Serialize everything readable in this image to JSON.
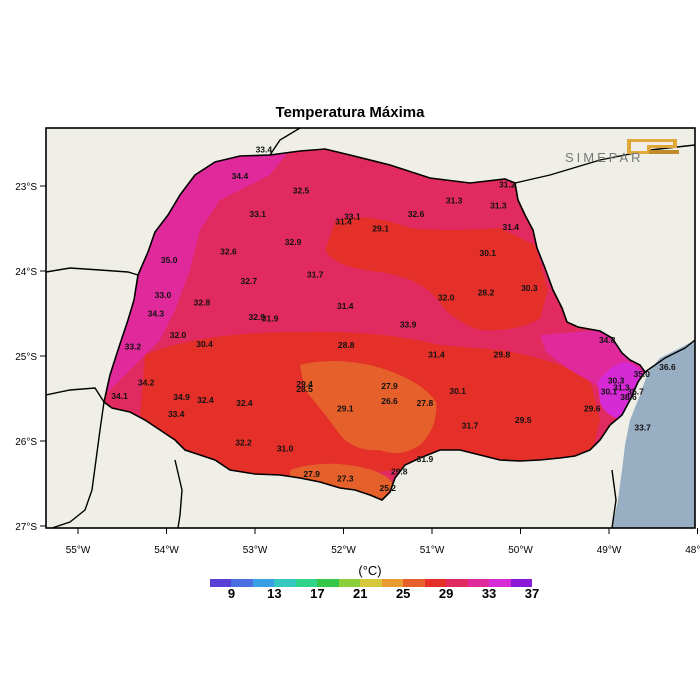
{
  "title": "Temperatura Máxima",
  "brand": "SIMEPAR",
  "unit": "(°C)",
  "axes": {
    "x_ticks": [
      "55°W",
      "54°W",
      "53°W",
      "52°W",
      "51°W",
      "50°W",
      "49°W",
      "48°W"
    ],
    "y_ticks": [
      "23°S",
      "24°S",
      "25°S",
      "26°S",
      "27°S"
    ]
  },
  "colorbar": {
    "colors": [
      "#5a3fd6",
      "#4a6fe0",
      "#3aa0e6",
      "#35c8c0",
      "#2fd48a",
      "#34c84a",
      "#8ccf3c",
      "#d6c83a",
      "#e89c30",
      "#e5602a",
      "#e5302a",
      "#e02a60",
      "#e02a9c",
      "#d62ad6",
      "#8a1ad6"
    ],
    "labels": [
      "9",
      "13",
      "17",
      "21",
      "25",
      "29",
      "33",
      "37"
    ]
  },
  "values": [
    {
      "text": "33.4",
      "lon": -52.9,
      "lat": -22.57
    },
    {
      "text": "34.4",
      "lon": -53.17,
      "lat": -22.88
    },
    {
      "text": "32.5",
      "lon": -52.48,
      "lat": -23.05
    },
    {
      "text": "31.2",
      "lon": -50.15,
      "lat": -22.98
    },
    {
      "text": "31.3",
      "lon": -50.75,
      "lat": -23.17
    },
    {
      "text": "31.3",
      "lon": -50.25,
      "lat": -23.23
    },
    {
      "text": "33.1",
      "lon": -52.97,
      "lat": -23.33
    },
    {
      "text": "33.1",
      "lon": -51.9,
      "lat": -23.36
    },
    {
      "text": "31.4",
      "lon": -52.0,
      "lat": -23.42
    },
    {
      "text": "32.6",
      "lon": -51.18,
      "lat": -23.33
    },
    {
      "text": "29.1",
      "lon": -51.58,
      "lat": -23.5
    },
    {
      "text": "31.4",
      "lon": -50.11,
      "lat": -23.48
    },
    {
      "text": "32.9",
      "lon": -52.57,
      "lat": -23.66
    },
    {
      "text": "32.6",
      "lon": -53.3,
      "lat": -23.77
    },
    {
      "text": "35.0",
      "lon": -53.97,
      "lat": -23.87
    },
    {
      "text": "30.1",
      "lon": -50.37,
      "lat": -23.79
    },
    {
      "text": "31.7",
      "lon": -52.32,
      "lat": -24.04
    },
    {
      "text": "32.7",
      "lon": -53.07,
      "lat": -24.12
    },
    {
      "text": "33.0",
      "lon": -54.04,
      "lat": -24.28
    },
    {
      "text": "28.2",
      "lon": -50.39,
      "lat": -24.25
    },
    {
      "text": "30.3",
      "lon": -49.9,
      "lat": -24.2
    },
    {
      "text": "32.0",
      "lon": -50.84,
      "lat": -24.31
    },
    {
      "text": "32.8",
      "lon": -53.6,
      "lat": -24.37
    },
    {
      "text": "31.4",
      "lon": -51.98,
      "lat": -24.41
    },
    {
      "text": "34.3",
      "lon": -54.12,
      "lat": -24.5
    },
    {
      "text": "32.9",
      "lon": -52.98,
      "lat": -24.54
    },
    {
      "text": "31.9",
      "lon": -52.83,
      "lat": -24.56
    },
    {
      "text": "33.9",
      "lon": -51.27,
      "lat": -24.63
    },
    {
      "text": "32.0",
      "lon": -53.87,
      "lat": -24.75
    },
    {
      "text": "34.8",
      "lon": -49.02,
      "lat": -24.81
    },
    {
      "text": "30.4",
      "lon": -53.57,
      "lat": -24.86
    },
    {
      "text": "33.2",
      "lon": -54.38,
      "lat": -24.89
    },
    {
      "text": "28.8",
      "lon": -51.97,
      "lat": -24.87
    },
    {
      "text": "31.4",
      "lon": -50.95,
      "lat": -24.98
    },
    {
      "text": "29.8",
      "lon": -50.21,
      "lat": -24.98
    },
    {
      "text": "36.6",
      "lon": -48.34,
      "lat": -25.13
    },
    {
      "text": "35.0",
      "lon": -48.63,
      "lat": -25.21
    },
    {
      "text": "34.2",
      "lon": -54.23,
      "lat": -25.31
    },
    {
      "text": "30.3",
      "lon": -48.92,
      "lat": -25.29
    },
    {
      "text": "29.4",
      "lon": -52.44,
      "lat": -25.33
    },
    {
      "text": "27.9",
      "lon": -51.48,
      "lat": -25.35
    },
    {
      "text": "31.3",
      "lon": -48.86,
      "lat": -25.37
    },
    {
      "text": "28.5",
      "lon": -52.44,
      "lat": -25.39
    },
    {
      "text": "30.1",
      "lon": -50.71,
      "lat": -25.41
    },
    {
      "text": "30.1",
      "lon": -49.0,
      "lat": -25.42
    },
    {
      "text": "35.7",
      "lon": -48.7,
      "lat": -25.42
    },
    {
      "text": "34.1",
      "lon": -54.53,
      "lat": -25.47
    },
    {
      "text": "34.9",
      "lon": -53.83,
      "lat": -25.48
    },
    {
      "text": "32.4",
      "lon": -53.56,
      "lat": -25.52
    },
    {
      "text": "38.6",
      "lon": -48.78,
      "lat": -25.48
    },
    {
      "text": "32.4",
      "lon": -53.12,
      "lat": -25.55
    },
    {
      "text": "26.6",
      "lon": -51.48,
      "lat": -25.53
    },
    {
      "text": "27.8",
      "lon": -51.08,
      "lat": -25.55
    },
    {
      "text": "29.1",
      "lon": -51.98,
      "lat": -25.62
    },
    {
      "text": "29.6",
      "lon": -49.19,
      "lat": -25.62
    },
    {
      "text": "33.4",
      "lon": -53.89,
      "lat": -25.68
    },
    {
      "text": "29.5",
      "lon": -49.97,
      "lat": -25.75
    },
    {
      "text": "31.7",
      "lon": -50.57,
      "lat": -25.82
    },
    {
      "text": "33.7",
      "lon": -48.62,
      "lat": -25.84
    },
    {
      "text": "32.2",
      "lon": -53.13,
      "lat": -26.02
    },
    {
      "text": "31.0",
      "lon": -52.66,
      "lat": -26.09
    },
    {
      "text": "31.9",
      "lon": -51.08,
      "lat": -26.21
    },
    {
      "text": "29.8",
      "lon": -51.37,
      "lat": -26.36
    },
    {
      "text": "27.9",
      "lon": -52.36,
      "lat": -26.39
    },
    {
      "text": "27.3",
      "lon": -51.98,
      "lat": -26.44
    },
    {
      "text": "25.2",
      "lon": -51.5,
      "lat": -26.55
    }
  ]
}
